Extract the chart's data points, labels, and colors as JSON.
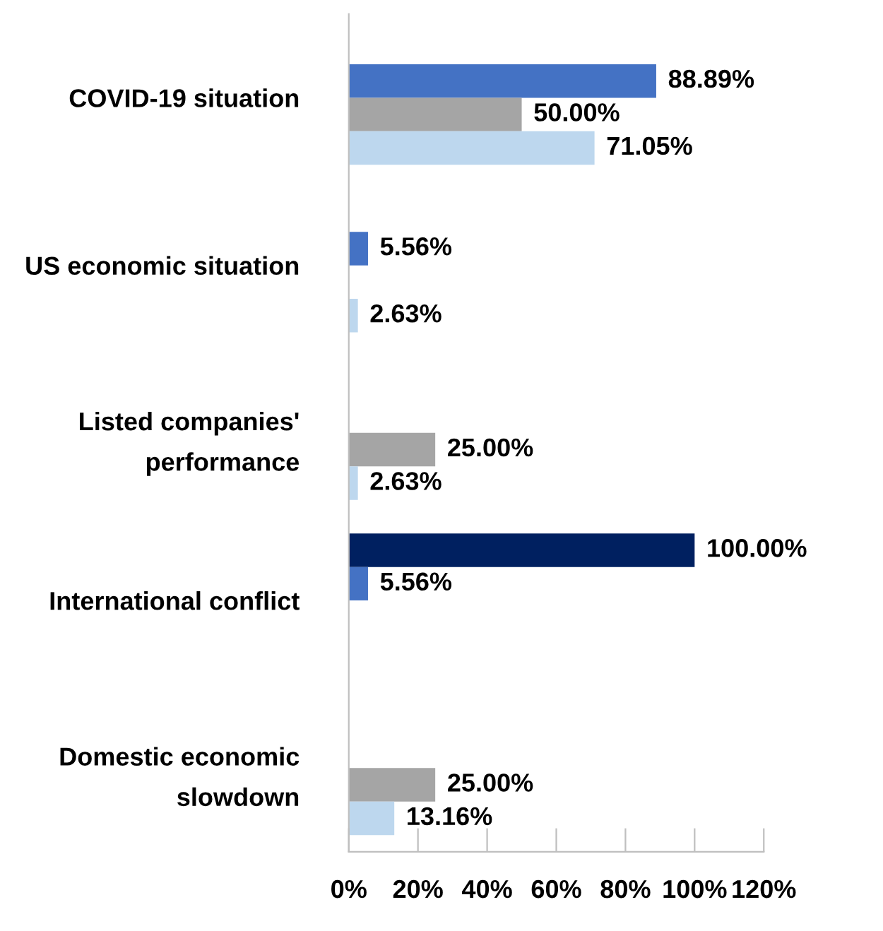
{
  "chart_data": {
    "type": "bar",
    "orientation": "horizontal",
    "categories": [
      "COVID-19 situation",
      "US economic situation",
      "Listed companies'\nperformance",
      "International conflict",
      "Domestic economic\nslowdown"
    ],
    "series": [
      {
        "color": "#002060",
        "values": [
          null,
          null,
          null,
          100.0,
          null
        ],
        "value_labels": [
          null,
          null,
          null,
          "100.00%",
          null
        ]
      },
      {
        "color": "#4472c4",
        "values": [
          88.89,
          5.56,
          null,
          5.56,
          null
        ],
        "value_labels": [
          "88.89%",
          "5.56%",
          null,
          "5.56%",
          null
        ]
      },
      {
        "color": "#a5a5a5",
        "values": [
          50.0,
          null,
          25.0,
          null,
          25.0
        ],
        "value_labels": [
          "50.00%",
          null,
          "25.00%",
          null,
          "25.00%"
        ]
      },
      {
        "color": "#bdd7ee",
        "values": [
          71.05,
          2.63,
          2.63,
          null,
          13.16
        ],
        "value_labels": [
          "71.05%",
          "2.63%",
          "2.63%",
          null,
          "13.16%"
        ]
      }
    ],
    "xlim": [
      0,
      120
    ],
    "xticks": [
      {
        "value": 0,
        "label": "0%"
      },
      {
        "value": 20,
        "label": "20%"
      },
      {
        "value": 40,
        "label": "40%"
      },
      {
        "value": 60,
        "label": "60%"
      },
      {
        "value": 80,
        "label": "80%"
      },
      {
        "value": 100,
        "label": "100%"
      },
      {
        "value": 120,
        "label": "120%"
      }
    ],
    "grid": false,
    "legend": false
  }
}
